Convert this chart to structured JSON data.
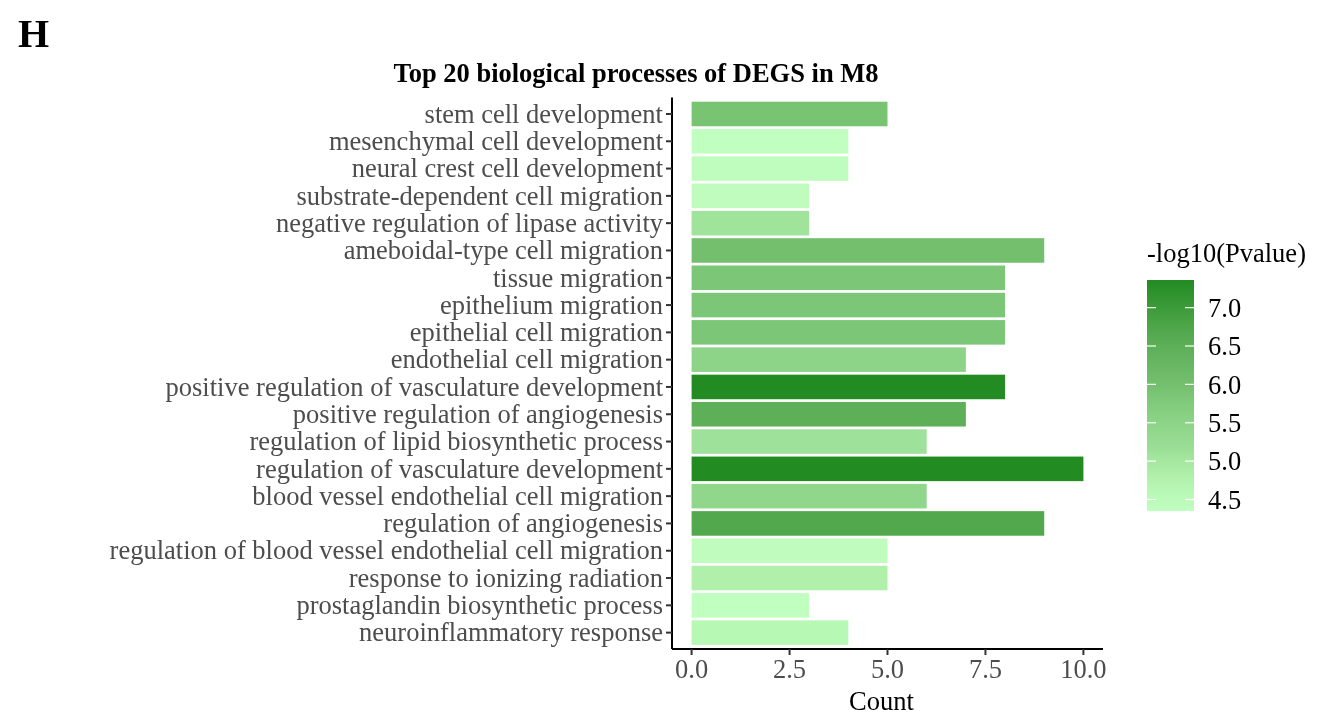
{
  "chart_data": {
    "type": "bar",
    "orientation": "horizontal",
    "title": "Top 20 biological processes of DEGS in M8",
    "xlabel": "Count",
    "clabel": "-log10(Pvalue)",
    "annotations": [
      "H"
    ],
    "categories": [
      "stem cell development",
      "mesenchymal cell development",
      "neural crest cell development",
      "substrate-dependent cell migration",
      "negative regulation of lipase activity",
      "ameboidal-type cell migration",
      "tissue migration",
      "epithelium migration",
      "epithelial cell migration",
      "endothelial cell migration",
      "positive regulation of vasculature development",
      "positive regulation of angiogenesis",
      "regulation of lipid biosynthetic process",
      "regulation of vasculature development",
      "blood vessel endothelial cell migration",
      "regulation of angiogenesis",
      "regulation of blood vessel endothelial cell migration",
      "response to ionizing radiation",
      "prostaglandin biosynthetic process",
      "neuroinflammatory response"
    ],
    "values": [
      5,
      4,
      4,
      3,
      3,
      9,
      8,
      8,
      8,
      7,
      8,
      7,
      6,
      10,
      6,
      9,
      5,
      5,
      3,
      4
    ],
    "cvalues": [
      5.9,
      4.38,
      4.4,
      4.4,
      5.1,
      6.0,
      5.85,
      5.85,
      5.85,
      5.5,
      7.36,
      6.5,
      5.1,
      7.36,
      5.4,
      6.7,
      4.4,
      4.8,
      4.35,
      4.6
    ],
    "colors": [
      "#78c473",
      "#c1ffc1",
      "#bffdbf",
      "#bffcbe",
      "#a0e39a",
      "#74bf6e",
      "#7cc777",
      "#7cc777",
      "#7cc777",
      "#8dd488",
      "#228b22",
      "#5daf58",
      "#9ee19a",
      "#228b22",
      "#90d78b",
      "#52a84c",
      "#bffcbe",
      "#b0f0ab",
      "#c1ffc1",
      "#b8f8b5"
    ],
    "xlim": [
      -0.5,
      10.5
    ],
    "xticks": [
      {
        "value": 0,
        "label": "0.0"
      },
      2.5,
      {
        "value": 5,
        "label": "5.0"
      },
      7.5,
      {
        "value": 10,
        "label": "10.0"
      }
    ],
    "clim": [
      4.35,
      7.36
    ],
    "cticks": [
      {
        "value": 4.5,
        "label": "4.5"
      },
      {
        "value": 5,
        "label": "5.0"
      },
      5.5,
      {
        "value": 6,
        "label": "6.0"
      },
      6.5,
      {
        "value": 7,
        "label": "7.0"
      }
    ]
  }
}
